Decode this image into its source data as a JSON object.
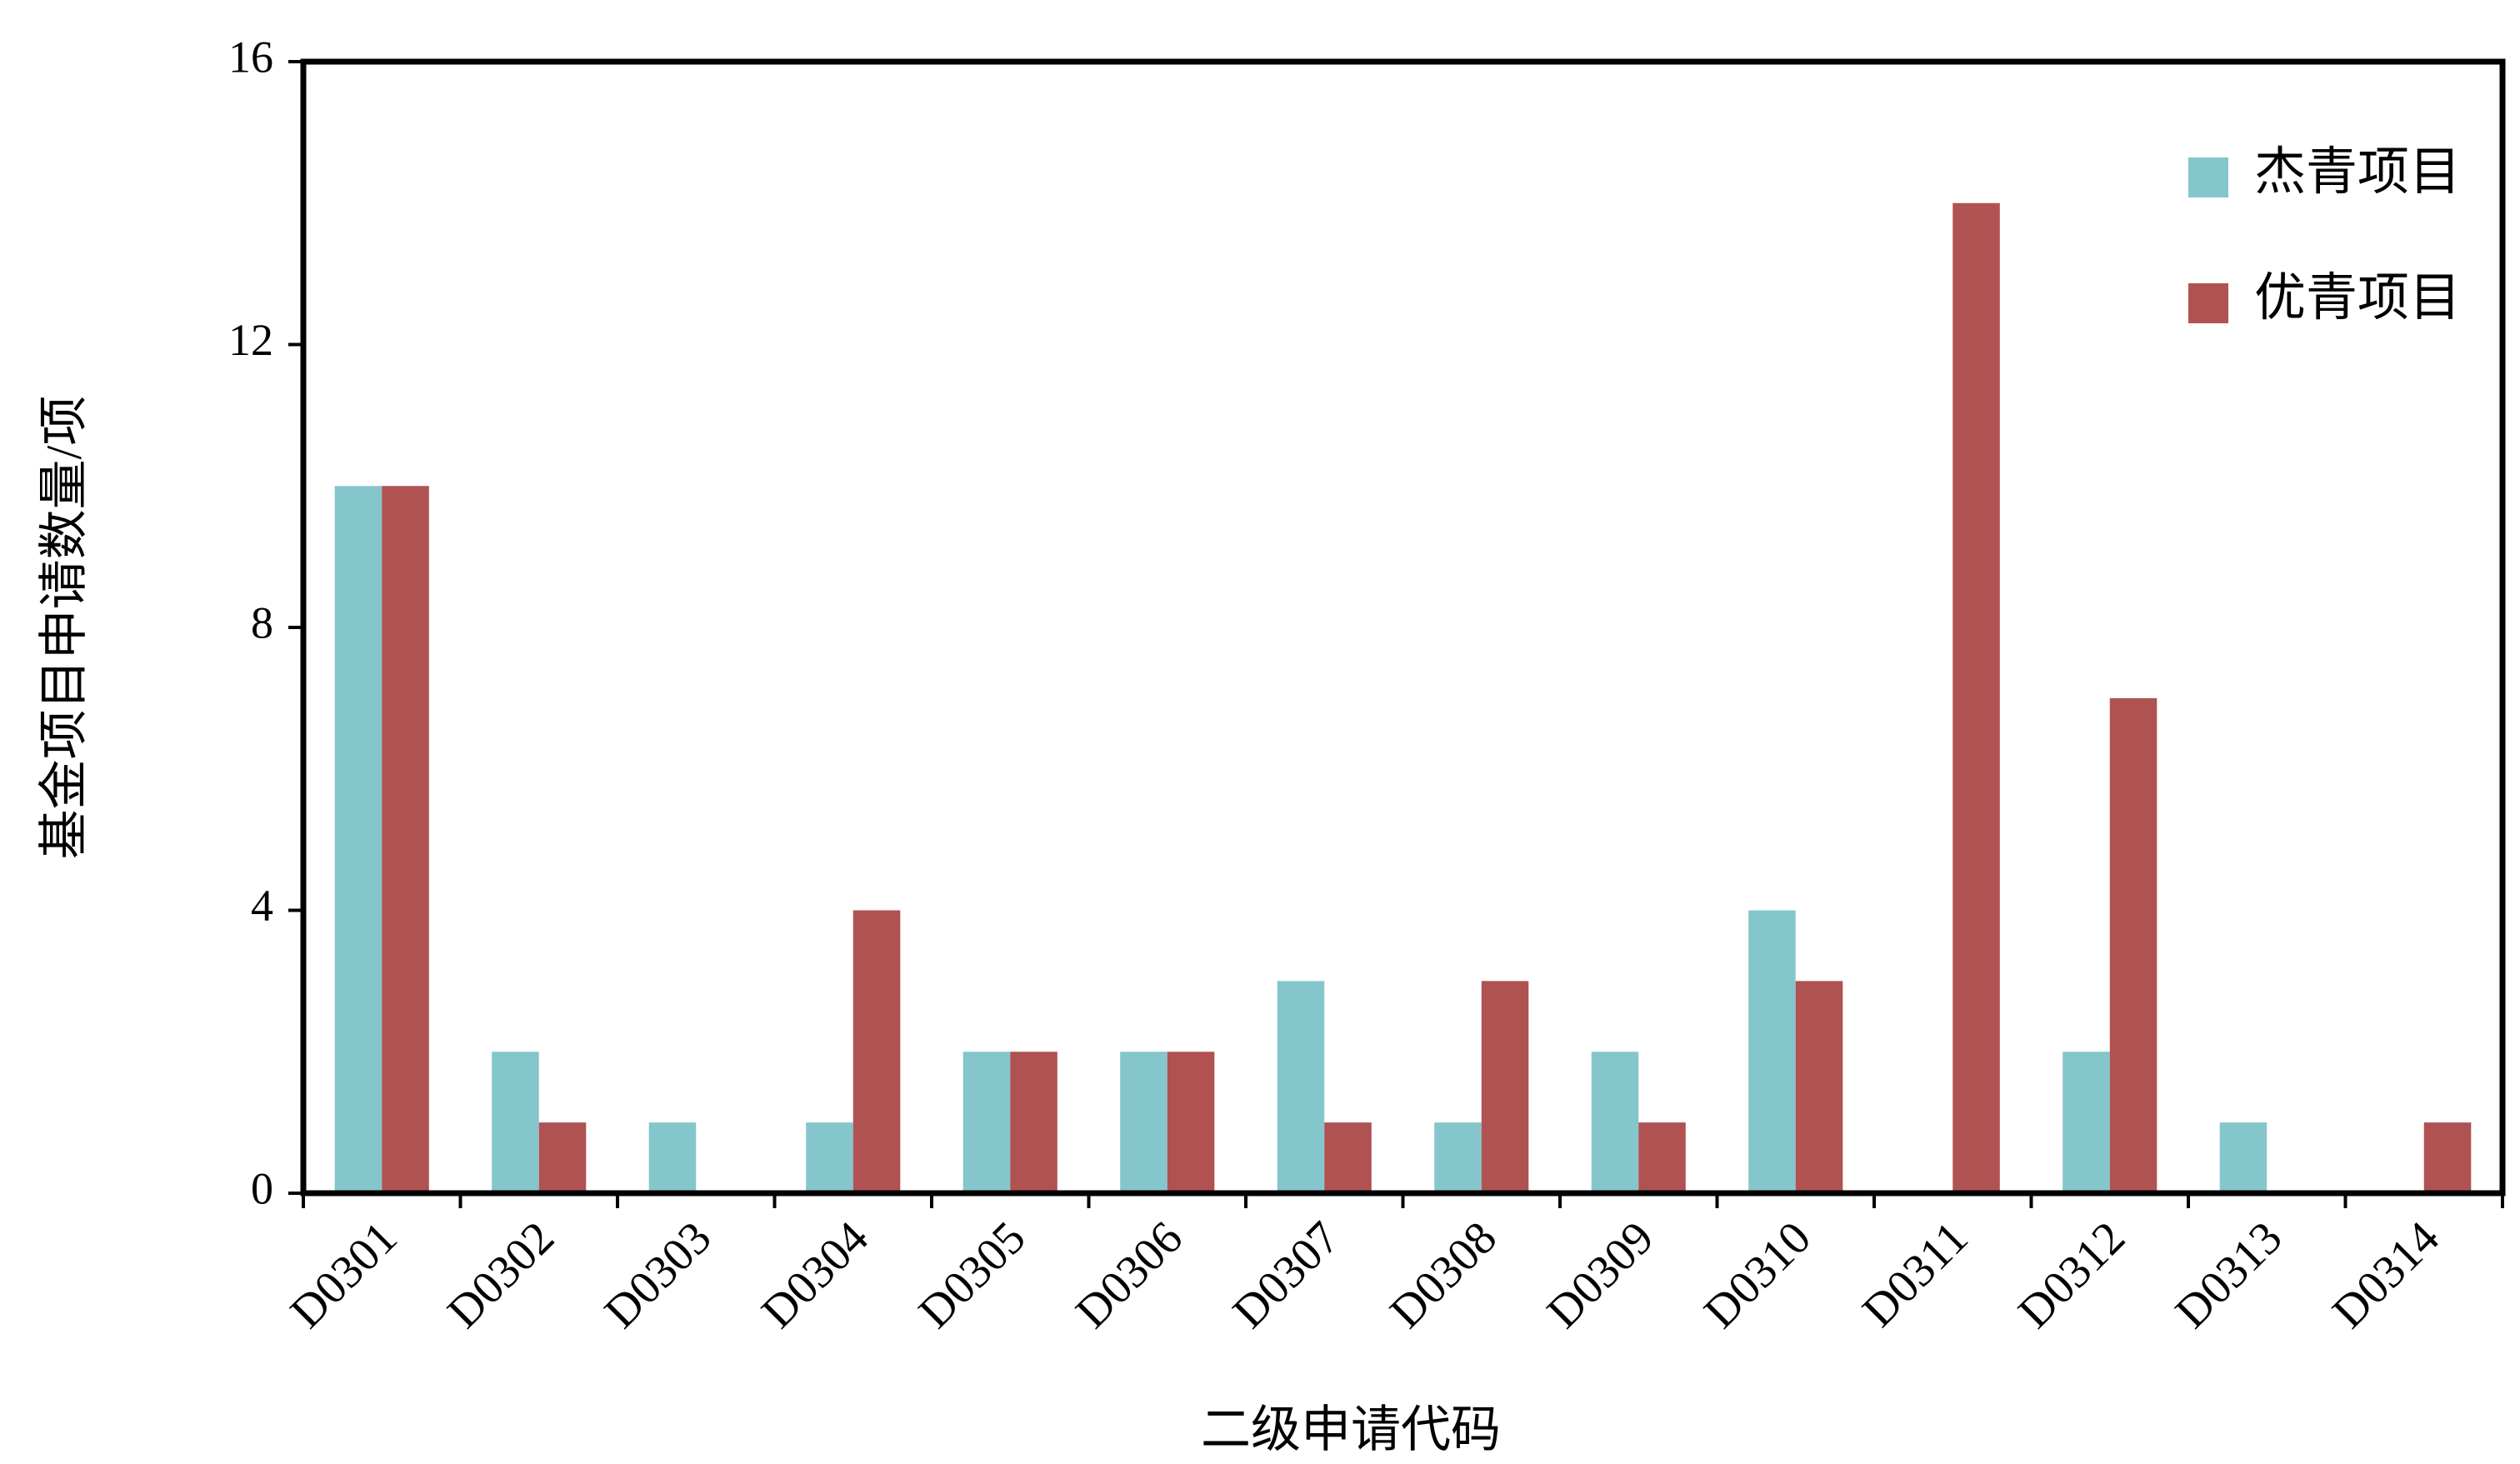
{
  "chart_data": {
    "type": "bar",
    "x_label": "二级申请代码",
    "y_label": "基金项目申请数量/项",
    "categories": [
      "D0301",
      "D0302",
      "D0303",
      "D0304",
      "D0305",
      "D0306",
      "D0307",
      "D0308",
      "D0309",
      "D0310",
      "D0311",
      "D0312",
      "D0313",
      "D0314"
    ],
    "series": [
      {
        "name": "杰青项目",
        "color": "#85c6cc",
        "values": [
          10,
          2,
          1,
          1,
          2,
          2,
          3,
          1,
          2,
          4,
          0,
          2,
          1,
          0
        ]
      },
      {
        "name": "优青项目",
        "color": "#b05252",
        "values": [
          10,
          1,
          0,
          4,
          2,
          2,
          1,
          3,
          1,
          3,
          14,
          7,
          0,
          1
        ]
      }
    ],
    "ylim": [
      0,
      16
    ],
    "yticks": [
      0,
      4,
      8,
      12,
      16
    ],
    "legend": "upper right",
    "grid": false
  }
}
